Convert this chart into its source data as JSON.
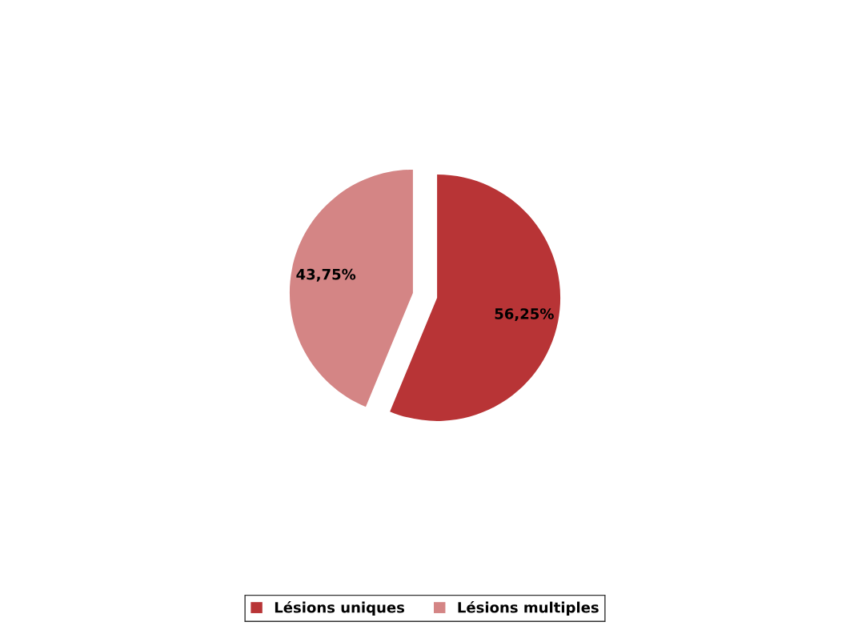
{
  "chart_data": {
    "type": "pie",
    "categories": [
      "Lésions uniques",
      "Lésions multiples"
    ],
    "values": [
      56.25,
      43.75
    ],
    "value_labels": [
      "56,25%",
      "43,75%"
    ],
    "colors": [
      "#b83436",
      "#d48585"
    ],
    "legend": "bottom"
  }
}
